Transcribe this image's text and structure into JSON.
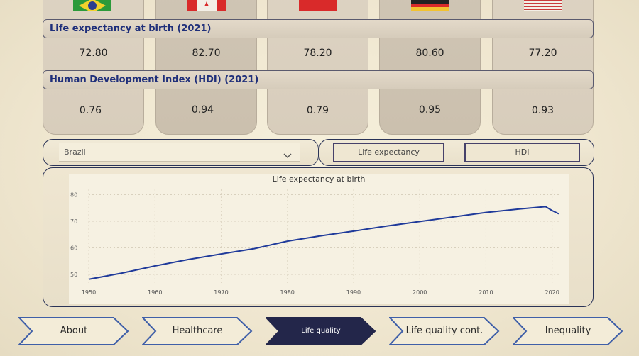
{
  "countries": [
    {
      "name": "Brazil",
      "life_expectancy": "72.80",
      "hdi": "0.76"
    },
    {
      "name": "Canada",
      "life_expectancy": "82.70",
      "hdi": "0.94"
    },
    {
      "name": "China",
      "life_expectancy": "78.20",
      "hdi": "0.79"
    },
    {
      "name": "Germany",
      "life_expectancy": "80.60",
      "hdi": "0.95"
    },
    {
      "name": "United States",
      "life_expectancy": "77.20",
      "hdi": "0.93"
    }
  ],
  "headers": {
    "life_expectancy": "Life expectancy at birth (2021)",
    "hdi": "Human Development Index (HDI) (2021)"
  },
  "dropdown": {
    "selected": "Brazil"
  },
  "toggles": {
    "life": "Life expectancy",
    "hdi": "HDI"
  },
  "nav": [
    {
      "label": "About"
    },
    {
      "label": "Healthcare"
    },
    {
      "label": "Life quality"
    },
    {
      "label": "Life quality cont."
    },
    {
      "label": "Inequality"
    }
  ],
  "colors": {
    "accent": "#1f3a9a",
    "nav_active": "#23264a",
    "line": "#1f3a9a"
  },
  "chart_data": {
    "type": "line",
    "title": "Life expectancy at birth",
    "xlabel": "",
    "ylabel": "",
    "xlim": [
      1950,
      2021
    ],
    "ylim": [
      46,
      82
    ],
    "xticks": [
      1950,
      1960,
      1970,
      1980,
      1990,
      2000,
      2010,
      2020
    ],
    "yticks": [
      50,
      60,
      70,
      80
    ],
    "series": [
      {
        "x": [
          1950,
          1955,
          1960,
          1965,
          1970,
          1975,
          1980,
          1985,
          1990,
          1995,
          2000,
          2005,
          2010,
          2015,
          2019,
          2020,
          2021
        ],
        "y": [
          48.2,
          50.5,
          53.2,
          55.6,
          57.7,
          59.7,
          62.5,
          64.5,
          66.3,
          68.2,
          69.9,
          71.6,
          73.3,
          74.6,
          75.5,
          74.0,
          72.8
        ]
      }
    ]
  }
}
